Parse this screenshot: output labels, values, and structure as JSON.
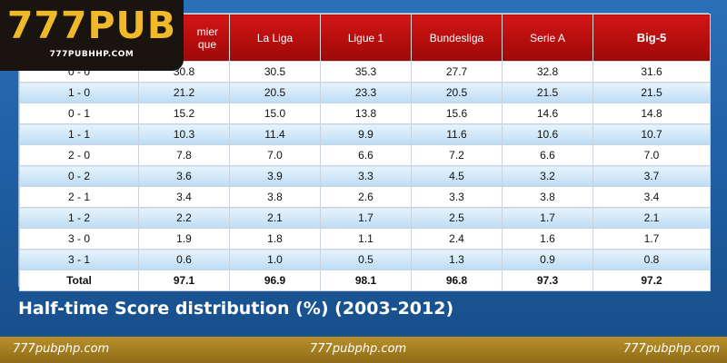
{
  "logo": {
    "main": "777PUB",
    "sub": "777PUBHHP.COM"
  },
  "table": {
    "headers": [
      "",
      "Premier League",
      "La Liga",
      "Ligue 1",
      "Bundesliga",
      "Serie A",
      "Big-5"
    ],
    "header_visible": [
      "",
      "mier\nque",
      "La Liga",
      "Ligue 1",
      "Bundesliga",
      "Serie A",
      "Big-5"
    ],
    "rows": [
      [
        "0 - 0",
        "30.8",
        "30.5",
        "35.3",
        "27.7",
        "32.8",
        "31.6"
      ],
      [
        "1 - 0",
        "21.2",
        "20.5",
        "23.3",
        "20.5",
        "21.5",
        "21.5"
      ],
      [
        "0 - 1",
        "15.2",
        "15.0",
        "13.8",
        "15.6",
        "14.6",
        "14.8"
      ],
      [
        "1 - 1",
        "10.3",
        "11.4",
        "9.9",
        "11.6",
        "10.6",
        "10.7"
      ],
      [
        "2 - 0",
        "7.8",
        "7.0",
        "6.6",
        "7.2",
        "6.6",
        "7.0"
      ],
      [
        "0 - 2",
        "3.6",
        "3.9",
        "3.3",
        "4.5",
        "3.2",
        "3.7"
      ],
      [
        "2 - 1",
        "3.4",
        "3.8",
        "2.6",
        "3.3",
        "3.8",
        "3.4"
      ],
      [
        "1 - 2",
        "2.2",
        "2.1",
        "1.7",
        "2.5",
        "1.7",
        "2.1"
      ],
      [
        "3 - 0",
        "1.9",
        "1.8",
        "1.1",
        "2.4",
        "1.6",
        "1.7"
      ],
      [
        "3 - 1",
        "0.6",
        "1.0",
        "0.5",
        "1.3",
        "0.9",
        "0.8"
      ],
      [
        "Total",
        "97.1",
        "96.9",
        "98.1",
        "96.8",
        "97.3",
        "97.2"
      ]
    ]
  },
  "caption": "Half-time Score distribution (%) (2003-2012)",
  "banner": [
    "777pubphp.com",
    "777pubphp.com",
    "777pubphp.com"
  ],
  "colors": {
    "header_red": "#c81212",
    "logo_gold": "#f0b92a",
    "banner_gold": "#a57f22",
    "background_blue": "#1f5fa0"
  }
}
